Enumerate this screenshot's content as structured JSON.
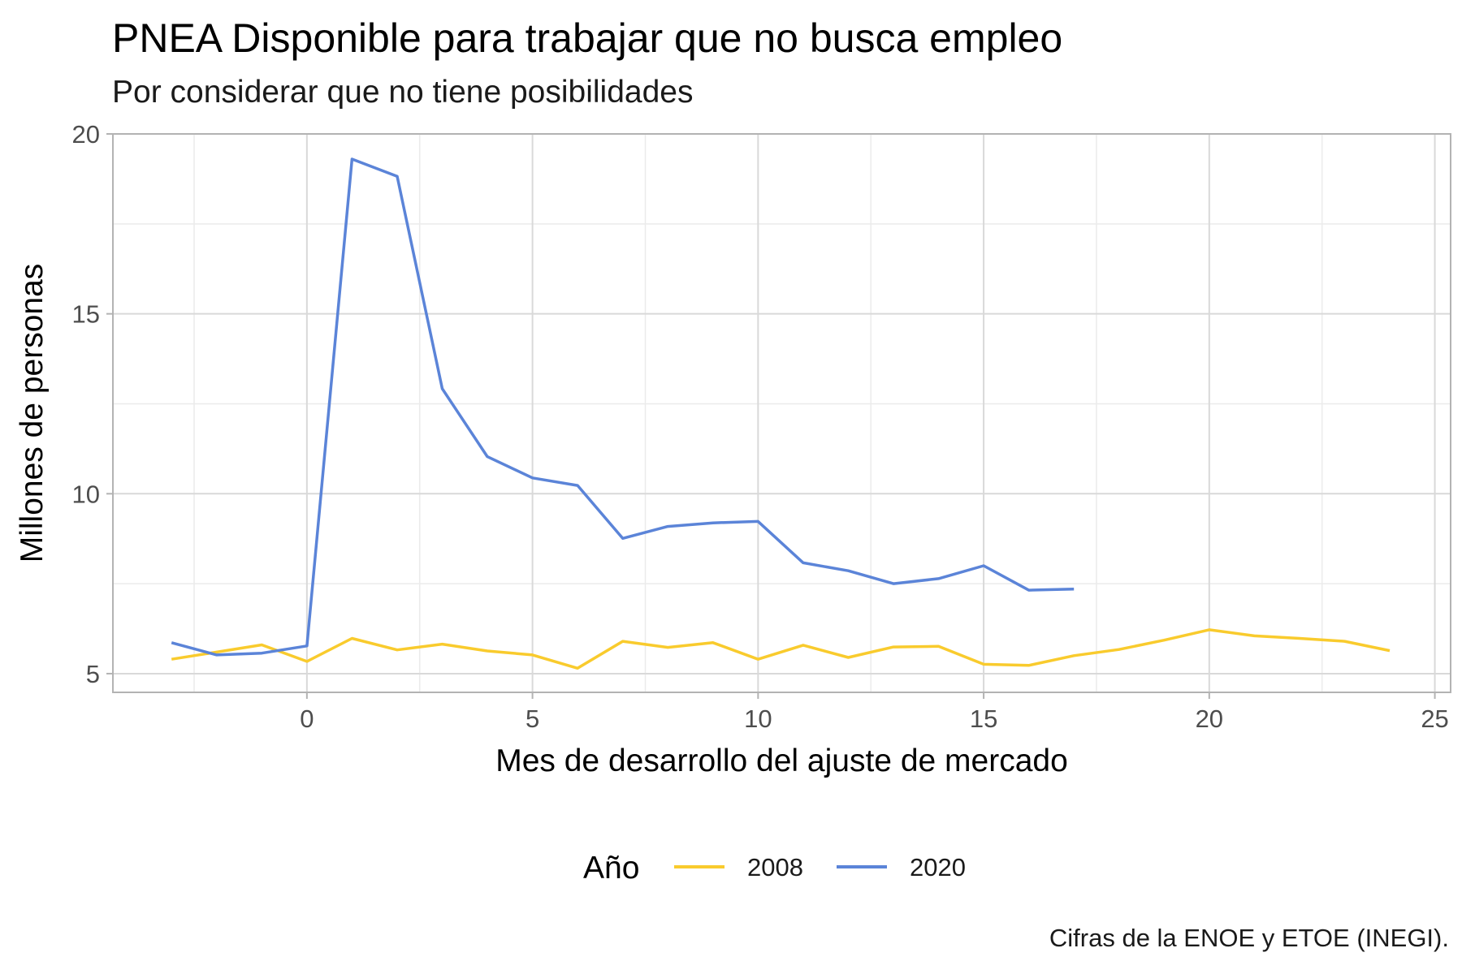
{
  "chart_data": {
    "type": "line",
    "title": "PNEA Disponible para trabajar que no busca empleo",
    "subtitle": "Por considerar que no tiene posibilidades",
    "xlabel": "Mes de desarrollo del ajuste de mercado",
    "ylabel": "Millones de personas",
    "caption": "Cifras de la ENOE y ETOE (INEGI).",
    "xlim": [
      -4.3,
      25.35
    ],
    "ylim": [
      4.48,
      20.0
    ],
    "x_ticks": [
      0,
      5,
      10,
      15,
      20,
      25
    ],
    "y_ticks": [
      5,
      10,
      15,
      20
    ],
    "x_tick_labels": [
      "0",
      "5",
      "10",
      "15",
      "20",
      "25"
    ],
    "y_tick_labels": [
      "5",
      "10",
      "15",
      "20"
    ],
    "grid": true,
    "legend": {
      "title": "Año",
      "position": "bottom",
      "entries": [
        "2008",
        "2020"
      ]
    },
    "colors": {
      "2008": "#F9CB2D",
      "2020": "#5B84D8"
    },
    "series": [
      {
        "name": "2008",
        "color": "#F9CB2D",
        "x": [
          -3,
          -2,
          -1,
          0,
          1,
          2,
          3,
          4,
          5,
          6,
          7,
          8,
          9,
          10,
          11,
          12,
          13,
          14,
          15,
          16,
          17,
          18,
          19,
          20,
          21,
          22,
          23,
          24
        ],
        "y": [
          5.4,
          5.6,
          5.8,
          5.34,
          5.98,
          5.66,
          5.82,
          5.63,
          5.52,
          5.15,
          5.9,
          5.73,
          5.86,
          5.4,
          5.79,
          5.45,
          5.74,
          5.76,
          5.26,
          5.23,
          5.5,
          5.67,
          5.93,
          6.22,
          6.05,
          5.98,
          5.9,
          5.64
        ]
      },
      {
        "name": "2020",
        "color": "#5B84D8",
        "x": [
          -3,
          -2,
          -1,
          0,
          1,
          2,
          3,
          4,
          5,
          6,
          7,
          8,
          9,
          10,
          11,
          12,
          13,
          14,
          15,
          16,
          17
        ],
        "y": [
          5.86,
          5.52,
          5.57,
          5.77,
          19.3,
          18.82,
          12.92,
          11.03,
          10.44,
          10.23,
          8.76,
          9.09,
          9.19,
          9.23,
          8.08,
          7.86,
          7.5,
          7.64,
          8.0,
          7.32,
          7.35
        ]
      }
    ]
  }
}
